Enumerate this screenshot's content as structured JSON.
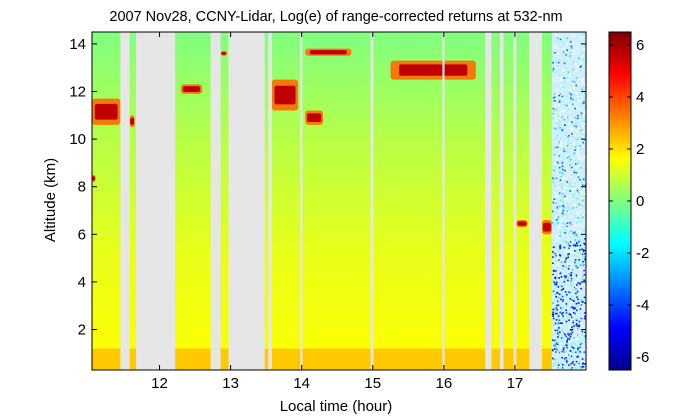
{
  "chart_data": {
    "type": "heatmap",
    "title": "2007 Nov28, CCNY-Lidar, Log(e) of range-corrected returns at 532-nm",
    "xlabel": "Local time (hour)",
    "ylabel": "Altitude (km)",
    "xlim": [
      11.05,
      18.0
    ],
    "ylim": [
      0.3,
      14.5
    ],
    "x_ticks": [
      12,
      13,
      14,
      15,
      16,
      17
    ],
    "y_ticks": [
      2,
      4,
      6,
      8,
      10,
      12,
      14
    ],
    "colorbar": {
      "range": [
        -6.5,
        6.5
      ],
      "ticks": [
        6,
        4,
        2,
        0,
        -2,
        -4,
        -6
      ],
      "colormap": "jet"
    },
    "data_gaps_hours": [
      [
        11.45,
        11.58
      ],
      [
        11.67,
        12.22
      ],
      [
        12.72,
        12.86
      ],
      [
        12.97,
        13.48
      ],
      [
        13.53,
        13.58
      ],
      [
        13.98,
        14.01
      ],
      [
        14.97,
        15.01
      ],
      [
        15.98,
        16.01
      ],
      [
        16.58,
        16.67
      ],
      [
        16.79,
        16.84
      ],
      [
        16.98,
        17.02
      ],
      [
        17.2,
        17.38
      ]
    ],
    "features": [
      {
        "kind": "cloud",
        "x": [
          11.05,
          11.45
        ],
        "y": [
          10.6,
          11.7
        ]
      },
      {
        "kind": "cloud",
        "x": [
          11.58,
          11.65
        ],
        "y": [
          10.5,
          11.0
        ]
      },
      {
        "kind": "cloud",
        "x": [
          12.3,
          12.6
        ],
        "y": [
          11.9,
          12.3
        ]
      },
      {
        "kind": "cloud",
        "x": [
          12.86,
          12.95
        ],
        "y": [
          13.5,
          13.7
        ]
      },
      {
        "kind": "cloud",
        "x": [
          13.58,
          13.95
        ],
        "y": [
          11.2,
          12.5
        ]
      },
      {
        "kind": "cloud",
        "x": [
          14.05,
          14.3
        ],
        "y": [
          10.6,
          11.2
        ]
      },
      {
        "kind": "cloud",
        "x": [
          14.05,
          14.7
        ],
        "y": [
          13.5,
          13.8
        ]
      },
      {
        "kind": "cloud",
        "x": [
          15.25,
          16.45
        ],
        "y": [
          12.5,
          13.3
        ]
      },
      {
        "kind": "cloud",
        "x": [
          11.05,
          11.1
        ],
        "y": [
          8.2,
          8.5
        ]
      },
      {
        "kind": "cloud",
        "x": [
          17.02,
          17.18
        ],
        "y": [
          6.3,
          6.6
        ]
      },
      {
        "kind": "cloud",
        "x": [
          17.38,
          17.52
        ],
        "y": [
          6.0,
          6.6
        ]
      },
      {
        "kind": "boundary-layer",
        "x": [
          11.05,
          17.52
        ],
        "y": [
          0.3,
          1.2
        ]
      }
    ],
    "noise_region_start_hour": 17.52
  }
}
